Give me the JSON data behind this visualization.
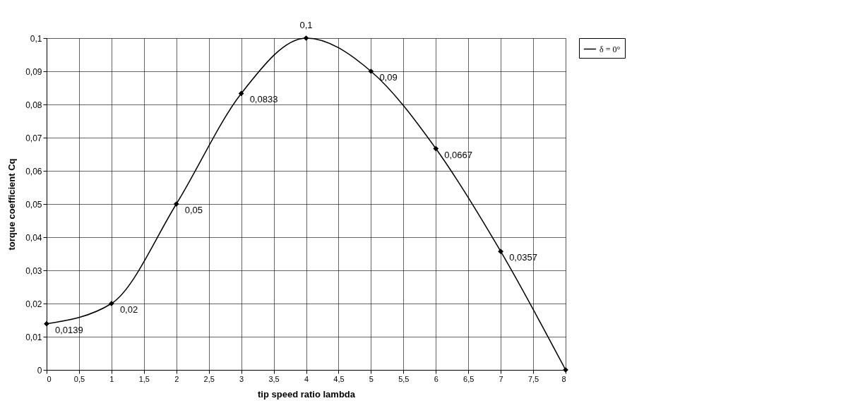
{
  "chart_data": {
    "type": "line",
    "xlabel": "tip speed ratio lambda",
    "ylabel": "torque coefficient Cq",
    "x": [
      0,
      1,
      2,
      3,
      4,
      5,
      6,
      7,
      8
    ],
    "series": [
      {
        "name": "δ = 0°",
        "color": "#000000",
        "values": [
          0.0139,
          0.02,
          0.05,
          0.0833,
          0.1,
          0.09,
          0.0667,
          0.0357,
          0
        ],
        "value_labels": [
          "0,0139",
          "0,02",
          "0,05",
          "0,0833",
          "0,1",
          "0,09",
          "0,0667",
          "0,0357",
          null
        ]
      }
    ],
    "xlim": [
      0,
      8
    ],
    "xticks": [
      0,
      {
        "value": 0.5,
        "label": "0,5"
      },
      1,
      {
        "value": 1.5,
        "label": "1,5"
      },
      2,
      {
        "value": 2.5,
        "label": "2,5"
      },
      3,
      {
        "value": 3.5,
        "label": "3,5"
      },
      4,
      {
        "value": 4.5,
        "label": "4,5"
      },
      5,
      {
        "value": 5.5,
        "label": "5,5"
      },
      6,
      {
        "value": 6.5,
        "label": "6,5"
      },
      7,
      {
        "value": 7.5,
        "label": "7,5"
      },
      8
    ],
    "ylim": [
      0,
      0.1
    ],
    "yticks": [
      0,
      {
        "value": 0.01,
        "label": "0,01"
      },
      {
        "value": 0.02,
        "label": "0,02"
      },
      {
        "value": 0.03,
        "label": "0,03"
      },
      {
        "value": 0.04,
        "label": "0,04"
      },
      {
        "value": 0.05,
        "label": "0,05"
      },
      {
        "value": 0.06,
        "label": "0,06"
      },
      {
        "value": 0.07,
        "label": "0,07"
      },
      {
        "value": 0.08,
        "label": "0,08"
      },
      {
        "value": 0.09,
        "label": "0,09"
      },
      {
        "value": 0.1,
        "label": "0,1"
      }
    ],
    "grid": true,
    "legend": "right",
    "marker": "diamond",
    "line_style": "solid"
  }
}
